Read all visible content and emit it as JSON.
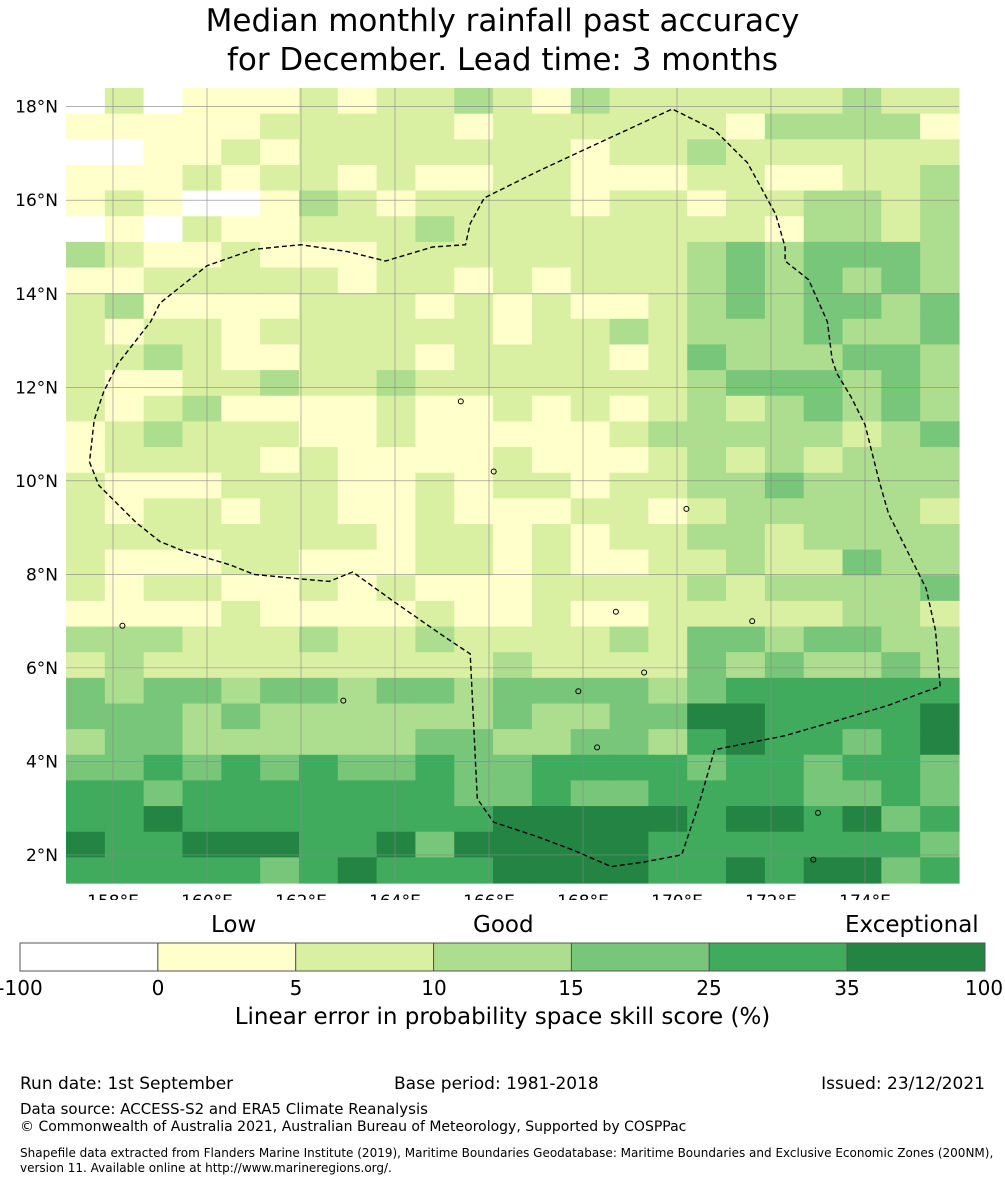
{
  "title": {
    "line1": "Median monthly rainfall past accuracy",
    "line2": "for December. Lead time: 3 months"
  },
  "map": {
    "lon_range": [
      157,
      176
    ],
    "lat_range": [
      1.4,
      18.4
    ],
    "lon_ticks": [
      "158°E",
      "160°E",
      "162°E",
      "164°E",
      "166°E",
      "168°E",
      "170°E",
      "172°E",
      "174°E"
    ],
    "lon_tick_values": [
      158,
      160,
      162,
      164,
      166,
      168,
      170,
      172,
      174
    ],
    "lat_ticks": [
      "18°N",
      "16°N",
      "14°N",
      "12°N",
      "10°N",
      "8°N",
      "6°N",
      "4°N",
      "2°N"
    ],
    "lat_tick_values": [
      18,
      16,
      14,
      12,
      10,
      8,
      6,
      4,
      2
    ],
    "grid": true,
    "eez_boundary": [
      [
        157.5,
        10.4
      ],
      [
        157.7,
        9.9
      ],
      [
        158.0,
        9.6
      ],
      [
        158.5,
        9.1
      ],
      [
        159.0,
        8.7
      ],
      [
        159.5,
        8.5
      ],
      [
        160.5,
        8.2
      ],
      [
        161.0,
        8.0
      ],
      [
        162.0,
        7.9
      ],
      [
        162.6,
        7.85
      ],
      [
        163.1,
        8.05
      ],
      [
        164.0,
        7.4
      ],
      [
        165.0,
        6.7
      ],
      [
        165.6,
        6.3
      ],
      [
        165.75,
        3.2
      ],
      [
        166.1,
        2.7
      ],
      [
        167.0,
        2.4
      ],
      [
        167.8,
        2.1
      ],
      [
        168.6,
        1.75
      ],
      [
        169.3,
        1.85
      ],
      [
        170.1,
        2.0
      ],
      [
        170.5,
        3.2
      ],
      [
        170.8,
        4.25
      ],
      [
        172.3,
        4.55
      ],
      [
        173.5,
        4.9
      ],
      [
        174.5,
        5.2
      ],
      [
        175.3,
        5.5
      ],
      [
        175.6,
        5.6
      ],
      [
        175.5,
        6.8
      ],
      [
        175.3,
        7.7
      ],
      [
        174.9,
        8.5
      ],
      [
        174.5,
        9.3
      ],
      [
        174.3,
        10.0
      ],
      [
        174.0,
        11.2
      ],
      [
        173.7,
        11.8
      ],
      [
        173.4,
        12.3
      ],
      [
        173.3,
        12.6
      ],
      [
        173.2,
        13.4
      ],
      [
        172.8,
        14.3
      ],
      [
        172.3,
        14.7
      ],
      [
        172.3,
        15.0
      ],
      [
        172.1,
        15.7
      ],
      [
        171.5,
        16.8
      ],
      [
        170.8,
        17.5
      ],
      [
        169.9,
        17.95
      ],
      [
        168.5,
        17.3
      ],
      [
        167.0,
        16.6
      ],
      [
        165.9,
        16.05
      ],
      [
        165.6,
        15.5
      ],
      [
        165.5,
        15.05
      ],
      [
        164.8,
        15.0
      ],
      [
        163.8,
        14.7
      ],
      [
        163.0,
        14.9
      ],
      [
        162.0,
        15.05
      ],
      [
        161.0,
        14.95
      ],
      [
        160.0,
        14.6
      ],
      [
        159.0,
        13.8
      ],
      [
        158.8,
        13.4
      ],
      [
        158.1,
        12.5
      ],
      [
        157.8,
        11.9
      ],
      [
        157.6,
        11.3
      ],
      [
        157.5,
        10.4
      ]
    ]
  },
  "colorbar": {
    "categories": [
      "Low",
      "Good",
      "Exceptional"
    ],
    "ticks": [
      "-100",
      "0",
      "5",
      "10",
      "15",
      "25",
      "35",
      "100"
    ],
    "colors": [
      "#ffffff",
      "#ffffcc",
      "#d9f0a3",
      "#addd8e",
      "#78c679",
      "#41ab5d",
      "#238443"
    ],
    "label": "Linear error in probability space skill score (%)"
  },
  "footer": {
    "run_date": "Run date: 1st September",
    "base_period": "Base period: 1981-2018",
    "issued": "Issued: 23/12/2021",
    "data_source": "Data source: ACCESS-S2 and ERA5 Climate Reanalysis",
    "copyright": "© Commonwealth of Australia 2021, Australian Bureau of Meteorology, Supported by COSPPac",
    "shapefile": "Shapefile data extracted from Flanders Marine Institute (2019), Maritime Boundaries Geodatabase: Maritime Boundaries and Exclusive Economic Zones (200NM), version 11. Available online at http://www.marineregions.org/."
  }
}
